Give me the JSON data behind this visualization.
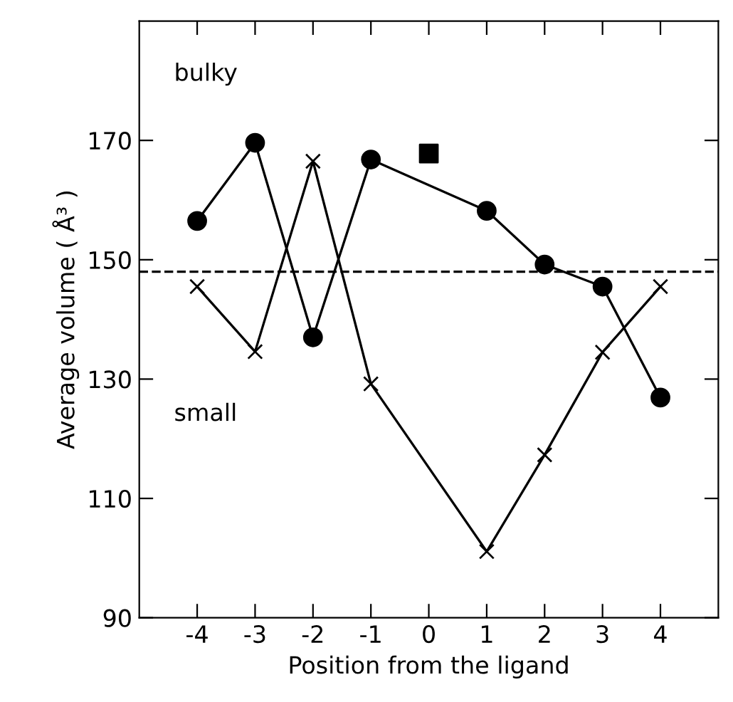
{
  "chart_data": {
    "type": "line",
    "xlabel": "Position from the ligand",
    "ylabel": "Average volume ( Å³ )",
    "xlim": [
      -5,
      5
    ],
    "ylim": [
      90,
      190
    ],
    "xticks": [
      -4,
      -3,
      -2,
      -1,
      0,
      1,
      2,
      3,
      4
    ],
    "yticks": [
      90,
      110,
      130,
      150,
      170
    ],
    "series": [
      {
        "color": "#000000",
        "marker": "circle",
        "x": [
          -4,
          -3,
          -2,
          -1,
          1,
          2,
          3,
          4
        ],
        "values": [
          156.5,
          169.6,
          137,
          166.8,
          158.2,
          149.2,
          145.5,
          126.9
        ]
      },
      {
        "color": "#000000",
        "marker": "cross",
        "x": [
          -4,
          -3,
          -2,
          -1,
          1,
          2,
          3,
          4
        ],
        "values": [
          145.5,
          134.6,
          166.5,
          129.2,
          101.1,
          117.3,
          134.5,
          145.5
        ]
      },
      {
        "type": "scatter",
        "color": "#000000",
        "marker": "square",
        "x": [
          0
        ],
        "values": [
          167.8
        ]
      }
    ],
    "ref_lines": [
      {
        "axis": "y",
        "value": 148,
        "line_style": "dashed",
        "color": "#000000"
      }
    ],
    "annotations": [
      "bulky",
      "small"
    ],
    "grid": false,
    "legend": false
  }
}
